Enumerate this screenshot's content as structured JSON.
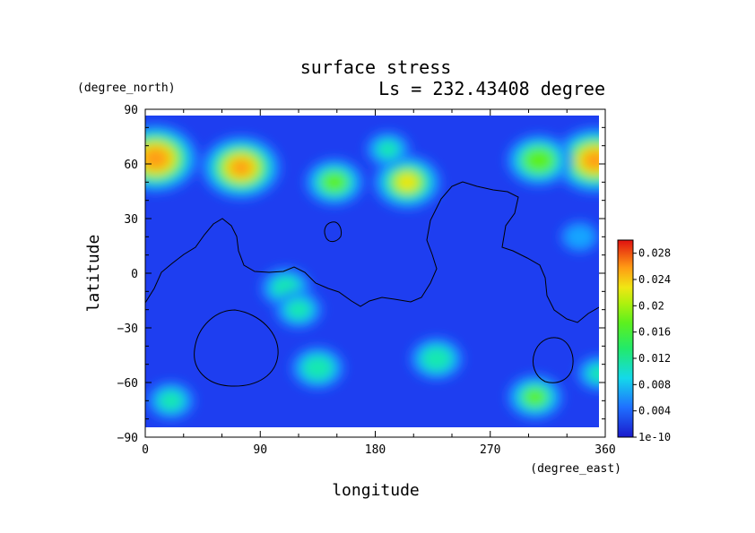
{
  "chart_data": {
    "type": "heatmap",
    "title": "surface stress",
    "subtitle": "Ls = 232.43408 degree",
    "xlabel": "longitude",
    "ylabel": "latitude",
    "x_unit": "(degree_east)",
    "y_unit": "(degree_north)",
    "xlim": [
      0,
      360
    ],
    "ylim": [
      -90,
      90
    ],
    "x_ticks": [
      "0",
      "90",
      "180",
      "270",
      "360"
    ],
    "y_ticks": [
      "90",
      "60",
      "30",
      "0",
      "−30",
      "−60",
      "−90"
    ],
    "colorbar": {
      "range": [
        0,
        0.03
      ],
      "labels": [
        "0.028",
        "0.024",
        "0.02",
        "0.016",
        "0.012",
        "0.008",
        "0.004",
        "1e-10"
      ],
      "colors": [
        "#1a1acc",
        "#1e3ef0",
        "#1f6fff",
        "#19a6ff",
        "#14d9ea",
        "#14e8b0",
        "#22ea6a",
        "#5cf01e",
        "#b0f00e",
        "#f0e614",
        "#ff9c14",
        "#ff4a10",
        "#e01010"
      ]
    },
    "hotspots": [
      {
        "lon": 8,
        "lat": 63,
        "value": 0.026
      },
      {
        "lon": 352,
        "lat": 62,
        "value": 0.025
      },
      {
        "lon": 75,
        "lat": 58,
        "value": 0.024
      },
      {
        "lon": 205,
        "lat": 50,
        "value": 0.02
      },
      {
        "lon": 148,
        "lat": 50,
        "value": 0.017
      },
      {
        "lon": 308,
        "lat": 62,
        "value": 0.019
      },
      {
        "lon": 190,
        "lat": 68,
        "value": 0.012
      },
      {
        "lon": 110,
        "lat": -8,
        "value": 0.014
      },
      {
        "lon": 120,
        "lat": -20,
        "value": 0.013
      },
      {
        "lon": 135,
        "lat": -52,
        "value": 0.015
      },
      {
        "lon": 228,
        "lat": -47,
        "value": 0.015
      },
      {
        "lon": 305,
        "lat": -68,
        "value": 0.016
      },
      {
        "lon": 20,
        "lat": -70,
        "value": 0.013
      },
      {
        "lon": 340,
        "lat": 20,
        "value": 0.01
      },
      {
        "lon": 355,
        "lat": -55,
        "value": 0.012
      }
    ]
  }
}
